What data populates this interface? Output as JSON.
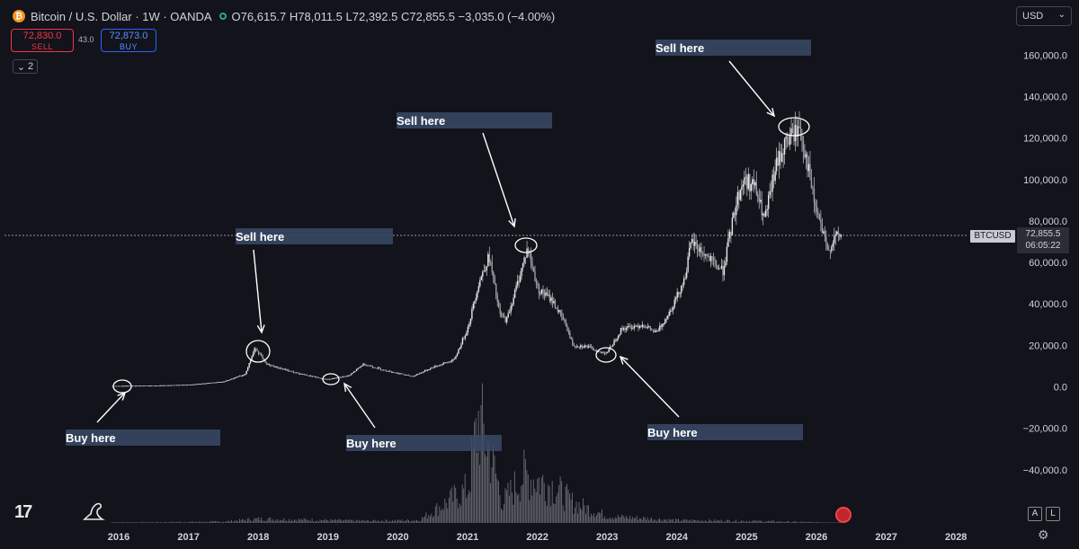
{
  "header": {
    "coin_icon": "bitcoin-icon",
    "title": "Bitcoin / U.S. Dollar · 1W · OANDA",
    "ohlc": "O76,615.7 H78,011.5 L72,392.5 C72,855.5 −3,035.0 (−4.00%)"
  },
  "trade": {
    "sell_price": "72,830.0",
    "sell_label": "SELL",
    "spread": "43.0",
    "buy_price": "72,873.0",
    "buy_label": "BUY"
  },
  "indicators_count": "2",
  "currency": "USD",
  "symbol_label": "BTCUSD",
  "last_price": "72,855.5",
  "countdown": "06:05:22",
  "scale_buttons": {
    "auto": "A",
    "log": "L"
  },
  "colors": {
    "background": "#12131b",
    "candles": "#d0d0d0",
    "annotation_box": "#3a4a66"
  },
  "chart_data": {
    "type": "candlestick",
    "symbol": "BTCUSD",
    "timeframe": "1W",
    "x_ticks": [
      "2016",
      "2017",
      "2018",
      "2019",
      "2020",
      "2021",
      "2022",
      "2023",
      "2024",
      "2025",
      "2026",
      "2027",
      "2028"
    ],
    "y_ticks": [
      160000,
      140000,
      120000,
      100000,
      80000,
      60000,
      40000,
      20000,
      0,
      -20000,
      -40000
    ],
    "y_tick_labels": [
      "160,000.0",
      "140,000.0",
      "120,000.0",
      "100,000.0",
      "80,000.0",
      "60,000.0",
      "40,000.0",
      "20,000.0",
      "0.0",
      "−20,000.0",
      "−40,000.0"
    ],
    "ylim": [
      -55000,
      178000
    ],
    "xlim": [
      2015.4,
      2028.5
    ],
    "series": [
      {
        "points": [
          [
            2015.9,
            400
          ],
          [
            2016.5,
            600
          ],
          [
            2017.0,
            1000
          ],
          [
            2017.5,
            2500
          ],
          [
            2017.8,
            6000
          ],
          [
            2017.95,
            19000
          ],
          [
            2018.1,
            11000
          ],
          [
            2018.5,
            7000
          ],
          [
            2018.9,
            4000
          ],
          [
            2019.0,
            3600
          ],
          [
            2019.3,
            5500
          ],
          [
            2019.5,
            11000
          ],
          [
            2019.8,
            8000
          ],
          [
            2020.2,
            5000
          ],
          [
            2020.5,
            9500
          ],
          [
            2020.8,
            13000
          ],
          [
            2021.0,
            29000
          ],
          [
            2021.15,
            50000
          ],
          [
            2021.3,
            63000
          ],
          [
            2021.45,
            35000
          ],
          [
            2021.55,
            32000
          ],
          [
            2021.75,
            55000
          ],
          [
            2021.85,
            67000
          ],
          [
            2022.0,
            47000
          ],
          [
            2022.2,
            42000
          ],
          [
            2022.4,
            30000
          ],
          [
            2022.5,
            20000
          ],
          [
            2022.7,
            19500
          ],
          [
            2022.9,
            16500
          ],
          [
            2023.0,
            16800
          ],
          [
            2023.2,
            28000
          ],
          [
            2023.5,
            30000
          ],
          [
            2023.7,
            26000
          ],
          [
            2023.9,
            37000
          ],
          [
            2024.1,
            52000
          ],
          [
            2024.2,
            70000
          ],
          [
            2024.5,
            60000
          ],
          [
            2024.65,
            56000
          ],
          [
            2024.85,
            90000
          ],
          [
            2024.95,
            100000
          ],
          [
            2025.1,
            97000
          ],
          [
            2025.25,
            80000
          ],
          [
            2025.4,
            105000
          ],
          [
            2025.55,
            118000
          ],
          [
            2025.75,
            125000
          ],
          [
            2025.85,
            110000
          ],
          [
            2025.95,
            90000
          ],
          [
            2026.05,
            78000
          ],
          [
            2026.15,
            65000
          ],
          [
            2026.25,
            72000
          ],
          [
            2026.35,
            72855
          ]
        ]
      }
    ],
    "volume": [
      [
        2016.5,
        1
      ],
      [
        2017.5,
        2
      ],
      [
        2018.0,
        6
      ],
      [
        2019.5,
        3
      ],
      [
        2020.3,
        4
      ],
      [
        2021.0,
        50
      ],
      [
        2021.15,
        150
      ],
      [
        2021.3,
        110
      ],
      [
        2021.5,
        30
      ],
      [
        2021.8,
        70
      ],
      [
        2022.2,
        55
      ],
      [
        2022.5,
        30
      ],
      [
        2023.0,
        10
      ],
      [
        2024.0,
        4
      ],
      [
        2025.0,
        3
      ],
      [
        2026.0,
        1
      ]
    ],
    "annotations": [
      {
        "text": "Buy here",
        "x": 2016.1,
        "y": 0
      },
      {
        "text": "Sell here",
        "x": 2018.0,
        "y": 19000
      },
      {
        "text": "Buy here",
        "x": 2019.2,
        "y": 3500
      },
      {
        "text": "Sell here",
        "x": 2021.9,
        "y": 67000
      },
      {
        "text": "Buy here",
        "x": 2023.0,
        "y": 16000
      },
      {
        "text": "Sell here",
        "x": 2025.8,
        "y": 124000
      }
    ]
  }
}
